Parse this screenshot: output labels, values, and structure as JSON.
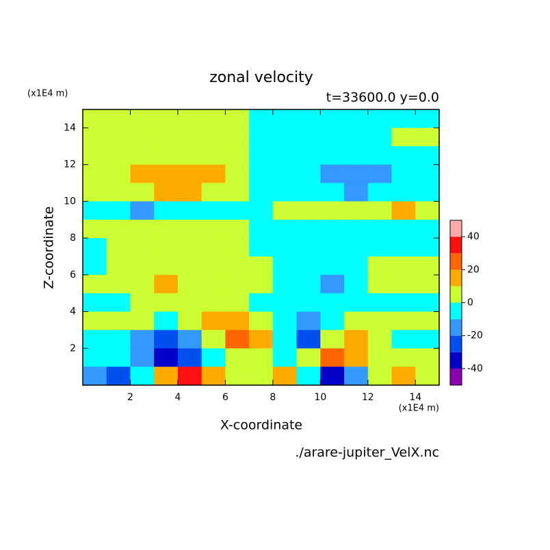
{
  "chart_data": {
    "type": "contour",
    "title": "zonal velocity",
    "subtitle": "t=33600.0 y=0.0",
    "x_label": "X-coordinate",
    "y_label": "Z-coordinate",
    "x_unit": "(x1E4 m)",
    "y_unit": "(x1E4 m)",
    "source": "./arare-jupiter_VelX.nc",
    "xlim": [
      0,
      15
    ],
    "ylim": [
      0,
      15
    ],
    "xticks": [
      2,
      4,
      6,
      8,
      10,
      12,
      14
    ],
    "yticks": [
      2,
      4,
      6,
      8,
      10,
      12,
      14
    ],
    "x": [
      0.5,
      1.5,
      2.5,
      3.5,
      4.5,
      5.5,
      6.5,
      7.5,
      8.5,
      9.5,
      10.5,
      11.5,
      12.5,
      13.5,
      14.5
    ],
    "y": [
      14.5,
      13.5,
      12.5,
      11.5,
      10.5,
      9.5,
      8.5,
      7.5,
      6.5,
      5.5,
      4.5,
      3.5,
      2.5,
      1.5,
      0.5
    ],
    "values": [
      [
        5,
        5,
        5,
        5,
        5,
        5,
        5,
        -5,
        -5,
        -5,
        -5,
        -5,
        -5,
        -5,
        -5
      ],
      [
        5,
        5,
        5,
        5,
        5,
        5,
        5,
        -5,
        -5,
        -5,
        -5,
        -5,
        -5,
        5,
        5
      ],
      [
        5,
        5,
        5,
        5,
        5,
        5,
        5,
        -5,
        -5,
        -5,
        -5,
        -5,
        -5,
        -5,
        -5
      ],
      [
        5,
        5,
        15,
        15,
        15,
        15,
        5,
        -5,
        -5,
        -5,
        -15,
        -15,
        -15,
        -5,
        -5
      ],
      [
        5,
        5,
        5,
        15,
        15,
        5,
        5,
        -5,
        -5,
        -5,
        -5,
        -15,
        -5,
        -5,
        -5
      ],
      [
        -5,
        -5,
        -15,
        -5,
        -5,
        -5,
        -5,
        -5,
        5,
        5,
        5,
        5,
        5,
        15,
        5
      ],
      [
        5,
        5,
        5,
        5,
        5,
        5,
        5,
        -5,
        -5,
        -5,
        -5,
        -5,
        -5,
        -5,
        -5
      ],
      [
        -5,
        5,
        5,
        5,
        5,
        5,
        5,
        -5,
        -5,
        -5,
        -5,
        -5,
        -5,
        -5,
        -5
      ],
      [
        -5,
        5,
        5,
        5,
        5,
        5,
        5,
        5,
        -5,
        -5,
        -5,
        -5,
        5,
        5,
        5
      ],
      [
        5,
        5,
        5,
        15,
        5,
        5,
        5,
        5,
        -5,
        -5,
        -15,
        -5,
        5,
        5,
        5
      ],
      [
        -5,
        -5,
        5,
        5,
        5,
        5,
        5,
        -5,
        -5,
        -5,
        -5,
        -5,
        -5,
        -5,
        -5
      ],
      [
        5,
        5,
        5,
        -5,
        5,
        15,
        15,
        5,
        -5,
        -15,
        -5,
        5,
        5,
        5,
        5
      ],
      [
        -5,
        -5,
        -15,
        -25,
        -15,
        5,
        25,
        15,
        -5,
        -25,
        5,
        15,
        5,
        -5,
        -5
      ],
      [
        -5,
        -5,
        -15,
        -35,
        -25,
        -5,
        5,
        5,
        -5,
        5,
        25,
        15,
        5,
        5,
        5
      ],
      [
        -15,
        -25,
        -5,
        15,
        35,
        15,
        5,
        5,
        15,
        -5,
        -35,
        -15,
        5,
        15,
        5
      ]
    ],
    "levels": [
      -50,
      -40,
      -30,
      -20,
      -10,
      0,
      10,
      20,
      30,
      40,
      50
    ],
    "colors": [
      "#8a00b0",
      "#0000c8",
      "#0050f0",
      "#3399ff",
      "#00ffff",
      "#ccff33",
      "#ffaa00",
      "#ff6600",
      "#ff1010",
      "#ffaaaa"
    ],
    "colorbar_ticks": [
      -40,
      -20,
      0,
      20,
      40
    ]
  }
}
